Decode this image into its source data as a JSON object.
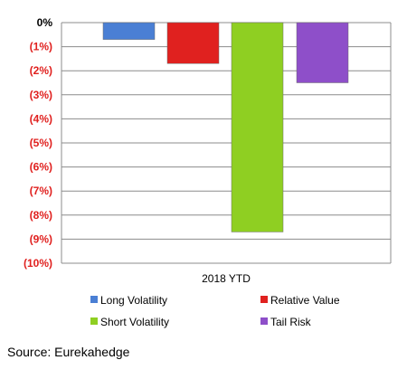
{
  "chart_data": {
    "type": "bar",
    "categories": [
      "2018 YTD"
    ],
    "series": [
      {
        "name": "Long Volatility",
        "values": [
          -0.7
        ],
        "color": "#4a7fd4"
      },
      {
        "name": "Relative Value",
        "values": [
          -1.7
        ],
        "color": "#e0211f"
      },
      {
        "name": "Short Volatility",
        "values": [
          -8.7
        ],
        "color": "#8fcf22"
      },
      {
        "name": "Tail Risk",
        "values": [
          -2.5
        ],
        "color": "#8e4fc9"
      }
    ],
    "ylim": [
      -10,
      0
    ],
    "yticks": [
      {
        "value": 0,
        "label": "0%"
      },
      {
        "value": -1,
        "label": "(1%)"
      },
      {
        "value": -2,
        "label": "(2%)"
      },
      {
        "value": -3,
        "label": "(3%)"
      },
      {
        "value": -4,
        "label": "(4%)"
      },
      {
        "value": -5,
        "label": "(5%)"
      },
      {
        "value": -6,
        "label": "(6%)"
      },
      {
        "value": -7,
        "label": "(7%)"
      },
      {
        "value": -8,
        "label": "(8%)"
      },
      {
        "value": -9,
        "label": "(9%)"
      },
      {
        "value": -10,
        "label": "(10%)"
      }
    ],
    "grid": true,
    "legend_position": "bottom",
    "negative_label_color": "#e0211f",
    "zero_label_color": "#000000"
  },
  "source_text": "Source: Eurekahedge"
}
